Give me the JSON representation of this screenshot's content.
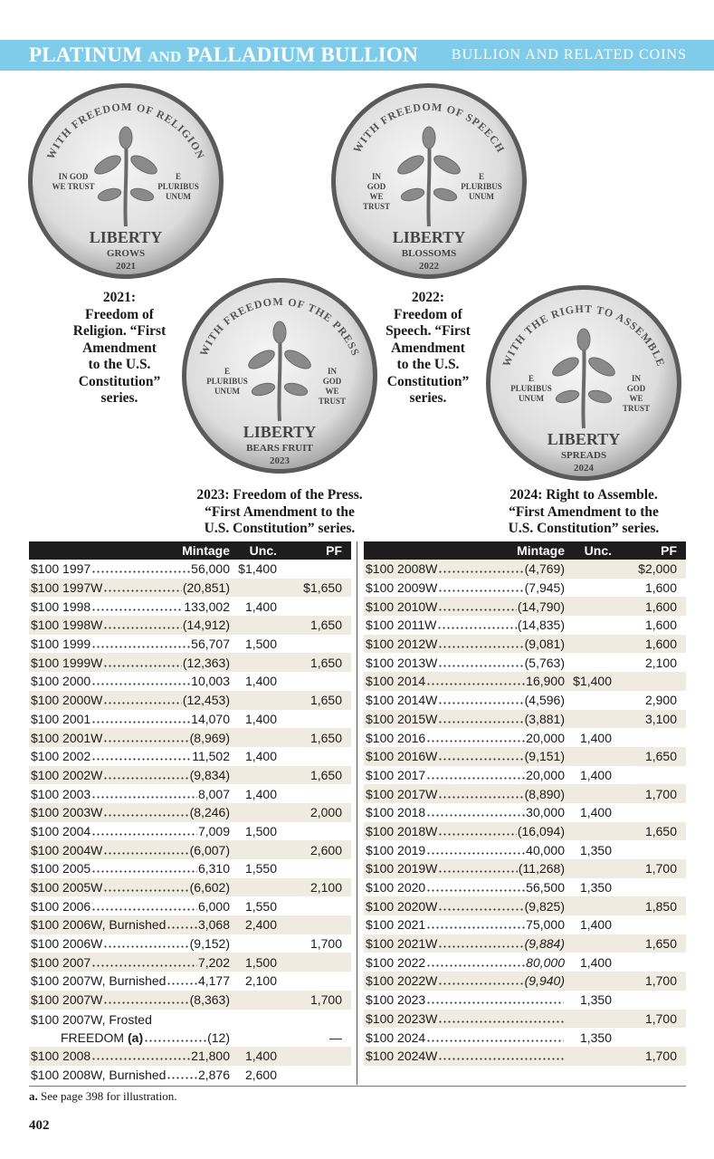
{
  "header": {
    "title_a": "PLATINUM",
    "title_and": "AND",
    "title_b": "PALLADIUM BULLION",
    "section": "BULLION AND RELATED COINS"
  },
  "colors": {
    "banner": "#7fcbea",
    "table_header": "#1d1d1d",
    "row_shade": "#efebe0"
  },
  "coins": [
    {
      "legend": "WITH FREEDOM OF RELIGION",
      "left": "IN GOD\nWE TRUST",
      "right": "E\nPLURIBUS\nUNUM",
      "liberty": "LIBERTY",
      "motto": "GROWS",
      "year": "2021"
    },
    {
      "legend": "WITH FREEDOM OF SPEECH",
      "left": "IN\nGOD\nWE\nTRUST",
      "right": "E\nPLURIBUS\nUNUM",
      "liberty": "LIBERTY",
      "motto": "BLOSSOMS",
      "year": "2022"
    },
    {
      "legend": "WITH FREEDOM OF THE PRESS",
      "left": "E\nPLURIBUS\nUNUM",
      "right": "IN\nGOD\nWE\nTRUST",
      "liberty": "LIBERTY",
      "motto": "BEARS FRUIT",
      "year": "2023"
    },
    {
      "legend": "WITH THE RIGHT TO ASSEMBLE",
      "left": "E\nPLURIBUS\nUNUM",
      "right": "IN\nGOD\nWE\nTRUST",
      "liberty": "LIBERTY",
      "motto": "SPREADS",
      "year": "2024"
    }
  ],
  "captions": [
    "2021:\nFreedom of\nReligion. “First\nAmendment\nto the U.S.\nConstitution”\nseries.",
    "2022:\nFreedom of\nSpeech. “First\nAmendment\nto the U.S.\nConstitution”\nseries.",
    "2023: Freedom of the Press.\n“First Amendment to the\nU.S. Constitution” series.",
    "2024: Right to Assemble.\n“First Amendment to the\nU.S. Constitution” series."
  ],
  "table_headers": {
    "mintage": "Mintage",
    "unc": "Unc.",
    "pf": "PF"
  },
  "left_rows": [
    {
      "label": "$100 1997",
      "mintage": "56,000",
      "unc": "$1,400",
      "pf": ""
    },
    {
      "label": "$100 1997W",
      "mintage": "(20,851)",
      "unc": "",
      "pf": "$1,650"
    },
    {
      "label": "$100 1998",
      "mintage": "133,002",
      "unc": "1,400",
      "pf": ""
    },
    {
      "label": "$100 1998W",
      "mintage": "(14,912)",
      "unc": "",
      "pf": "1,650"
    },
    {
      "label": "$100 1999",
      "mintage": "56,707",
      "unc": "1,500",
      "pf": ""
    },
    {
      "label": "$100 1999W",
      "mintage": "(12,363)",
      "unc": "",
      "pf": "1,650"
    },
    {
      "label": "$100 2000",
      "mintage": "10,003",
      "unc": "1,400",
      "pf": ""
    },
    {
      "label": "$100 2000W",
      "mintage": "(12,453)",
      "unc": "",
      "pf": "1,650"
    },
    {
      "label": "$100 2001",
      "mintage": "14,070",
      "unc": "1,400",
      "pf": ""
    },
    {
      "label": "$100 2001W",
      "mintage": "(8,969)",
      "unc": "",
      "pf": "1,650"
    },
    {
      "label": "$100 2002",
      "mintage": "11,502",
      "unc": "1,400",
      "pf": ""
    },
    {
      "label": "$100 2002W",
      "mintage": "(9,834)",
      "unc": "",
      "pf": "1,650"
    },
    {
      "label": "$100 2003",
      "mintage": "8,007",
      "unc": "1,400",
      "pf": ""
    },
    {
      "label": "$100 2003W",
      "mintage": "(8,246)",
      "unc": "",
      "pf": "2,000"
    },
    {
      "label": "$100 2004",
      "mintage": "7,009",
      "unc": "1,500",
      "pf": ""
    },
    {
      "label": "$100 2004W",
      "mintage": "(6,007)",
      "unc": "",
      "pf": "2,600"
    },
    {
      "label": "$100 2005",
      "mintage": "6,310",
      "unc": "1,550",
      "pf": ""
    },
    {
      "label": "$100 2005W",
      "mintage": "(6,602)",
      "unc": "",
      "pf": "2,100"
    },
    {
      "label": "$100 2006",
      "mintage": "6,000",
      "unc": "1,550",
      "pf": ""
    },
    {
      "label": "$100 2006W, Burnished",
      "mintage": "3,068",
      "unc": "2,400",
      "pf": ""
    },
    {
      "label": "$100 2006W",
      "mintage": "(9,152)",
      "unc": "",
      "pf": "1,700"
    },
    {
      "label": "$100 2007",
      "mintage": "7,202",
      "unc": "1,500",
      "pf": ""
    },
    {
      "label": "$100 2007W, Burnished",
      "mintage": "4,177",
      "unc": "2,100",
      "pf": ""
    },
    {
      "label": "$100 2007W",
      "mintage": "(8,363)",
      "unc": "",
      "pf": "1,700"
    },
    {
      "label": "$100 2007W, Frosted",
      "label2": "FREEDOM",
      "note": "(a)",
      "mintage": "(12)",
      "unc": "",
      "pf": "—"
    },
    {
      "label": "$100 2008",
      "mintage": "21,800",
      "unc": "1,400",
      "pf": ""
    },
    {
      "label": "$100 2008W, Burnished",
      "mintage": "2,876",
      "unc": "2,600",
      "pf": ""
    }
  ],
  "right_rows": [
    {
      "label": "$100 2008W",
      "mintage": "(4,769)",
      "unc": "",
      "pf": "$2,000"
    },
    {
      "label": "$100 2009W",
      "mintage": "(7,945)",
      "unc": "",
      "pf": "1,600"
    },
    {
      "label": "$100 2010W",
      "mintage": "(14,790)",
      "unc": "",
      "pf": "1,600"
    },
    {
      "label": "$100 2011W",
      "mintage": "(14,835)",
      "unc": "",
      "pf": "1,600"
    },
    {
      "label": "$100 2012W",
      "mintage": "(9,081)",
      "unc": "",
      "pf": "1,600"
    },
    {
      "label": "$100 2013W",
      "mintage": "(5,763)",
      "unc": "",
      "pf": "2,100"
    },
    {
      "label": "$100 2014",
      "mintage": "16,900",
      "unc": "$1,400",
      "pf": ""
    },
    {
      "label": "$100 2014W",
      "mintage": "(4,596)",
      "unc": "",
      "pf": "2,900"
    },
    {
      "label": "$100 2015W",
      "mintage": "(3,881)",
      "unc": "",
      "pf": "3,100"
    },
    {
      "label": "$100 2016",
      "mintage": "20,000",
      "unc": "1,400",
      "pf": ""
    },
    {
      "label": "$100 2016W",
      "mintage": "(9,151)",
      "unc": "",
      "pf": "1,650"
    },
    {
      "label": "$100 2017",
      "mintage": "20,000",
      "unc": "1,400",
      "pf": ""
    },
    {
      "label": "$100 2017W",
      "mintage": "(8,890)",
      "unc": "",
      "pf": "1,700"
    },
    {
      "label": "$100 2018",
      "mintage": "30,000",
      "unc": "1,400",
      "pf": ""
    },
    {
      "label": "$100 2018W",
      "mintage": "(16,094)",
      "unc": "",
      "pf": "1,650"
    },
    {
      "label": "$100 2019",
      "mintage": "40,000",
      "unc": "1,350",
      "pf": ""
    },
    {
      "label": "$100 2019W",
      "mintage": "(11,268)",
      "unc": "",
      "pf": "1,700"
    },
    {
      "label": "$100 2020",
      "mintage": "56,500",
      "unc": "1,350",
      "pf": ""
    },
    {
      "label": "$100 2020W",
      "mintage": "(9,825)",
      "unc": "",
      "pf": "1,850"
    },
    {
      "label": "$100 2021",
      "mintage": "75,000",
      "unc": "1,400",
      "pf": ""
    },
    {
      "label": "$100 2021W",
      "mintage": "(9,884)",
      "italic": true,
      "unc": "",
      "pf": "1,650"
    },
    {
      "label": "$100 2022",
      "mintage": "80,000",
      "italic": true,
      "unc": "1,400",
      "pf": ""
    },
    {
      "label": "$100 2022W",
      "mintage": "(9,940)",
      "italic": true,
      "unc": "",
      "pf": "1,700"
    },
    {
      "label": "$100 2023",
      "mintage": "",
      "unc": "1,350",
      "pf": ""
    },
    {
      "label": "$100 2023W",
      "mintage": "",
      "unc": "",
      "pf": "1,700"
    },
    {
      "label": "$100 2024",
      "mintage": "",
      "unc": "1,350",
      "pf": ""
    },
    {
      "label": "$100 2024W",
      "mintage": "",
      "unc": "",
      "pf": "1,700"
    }
  ],
  "footnote": {
    "mark": "a.",
    "text": "See page 398 for illustration."
  },
  "page_number": "402"
}
